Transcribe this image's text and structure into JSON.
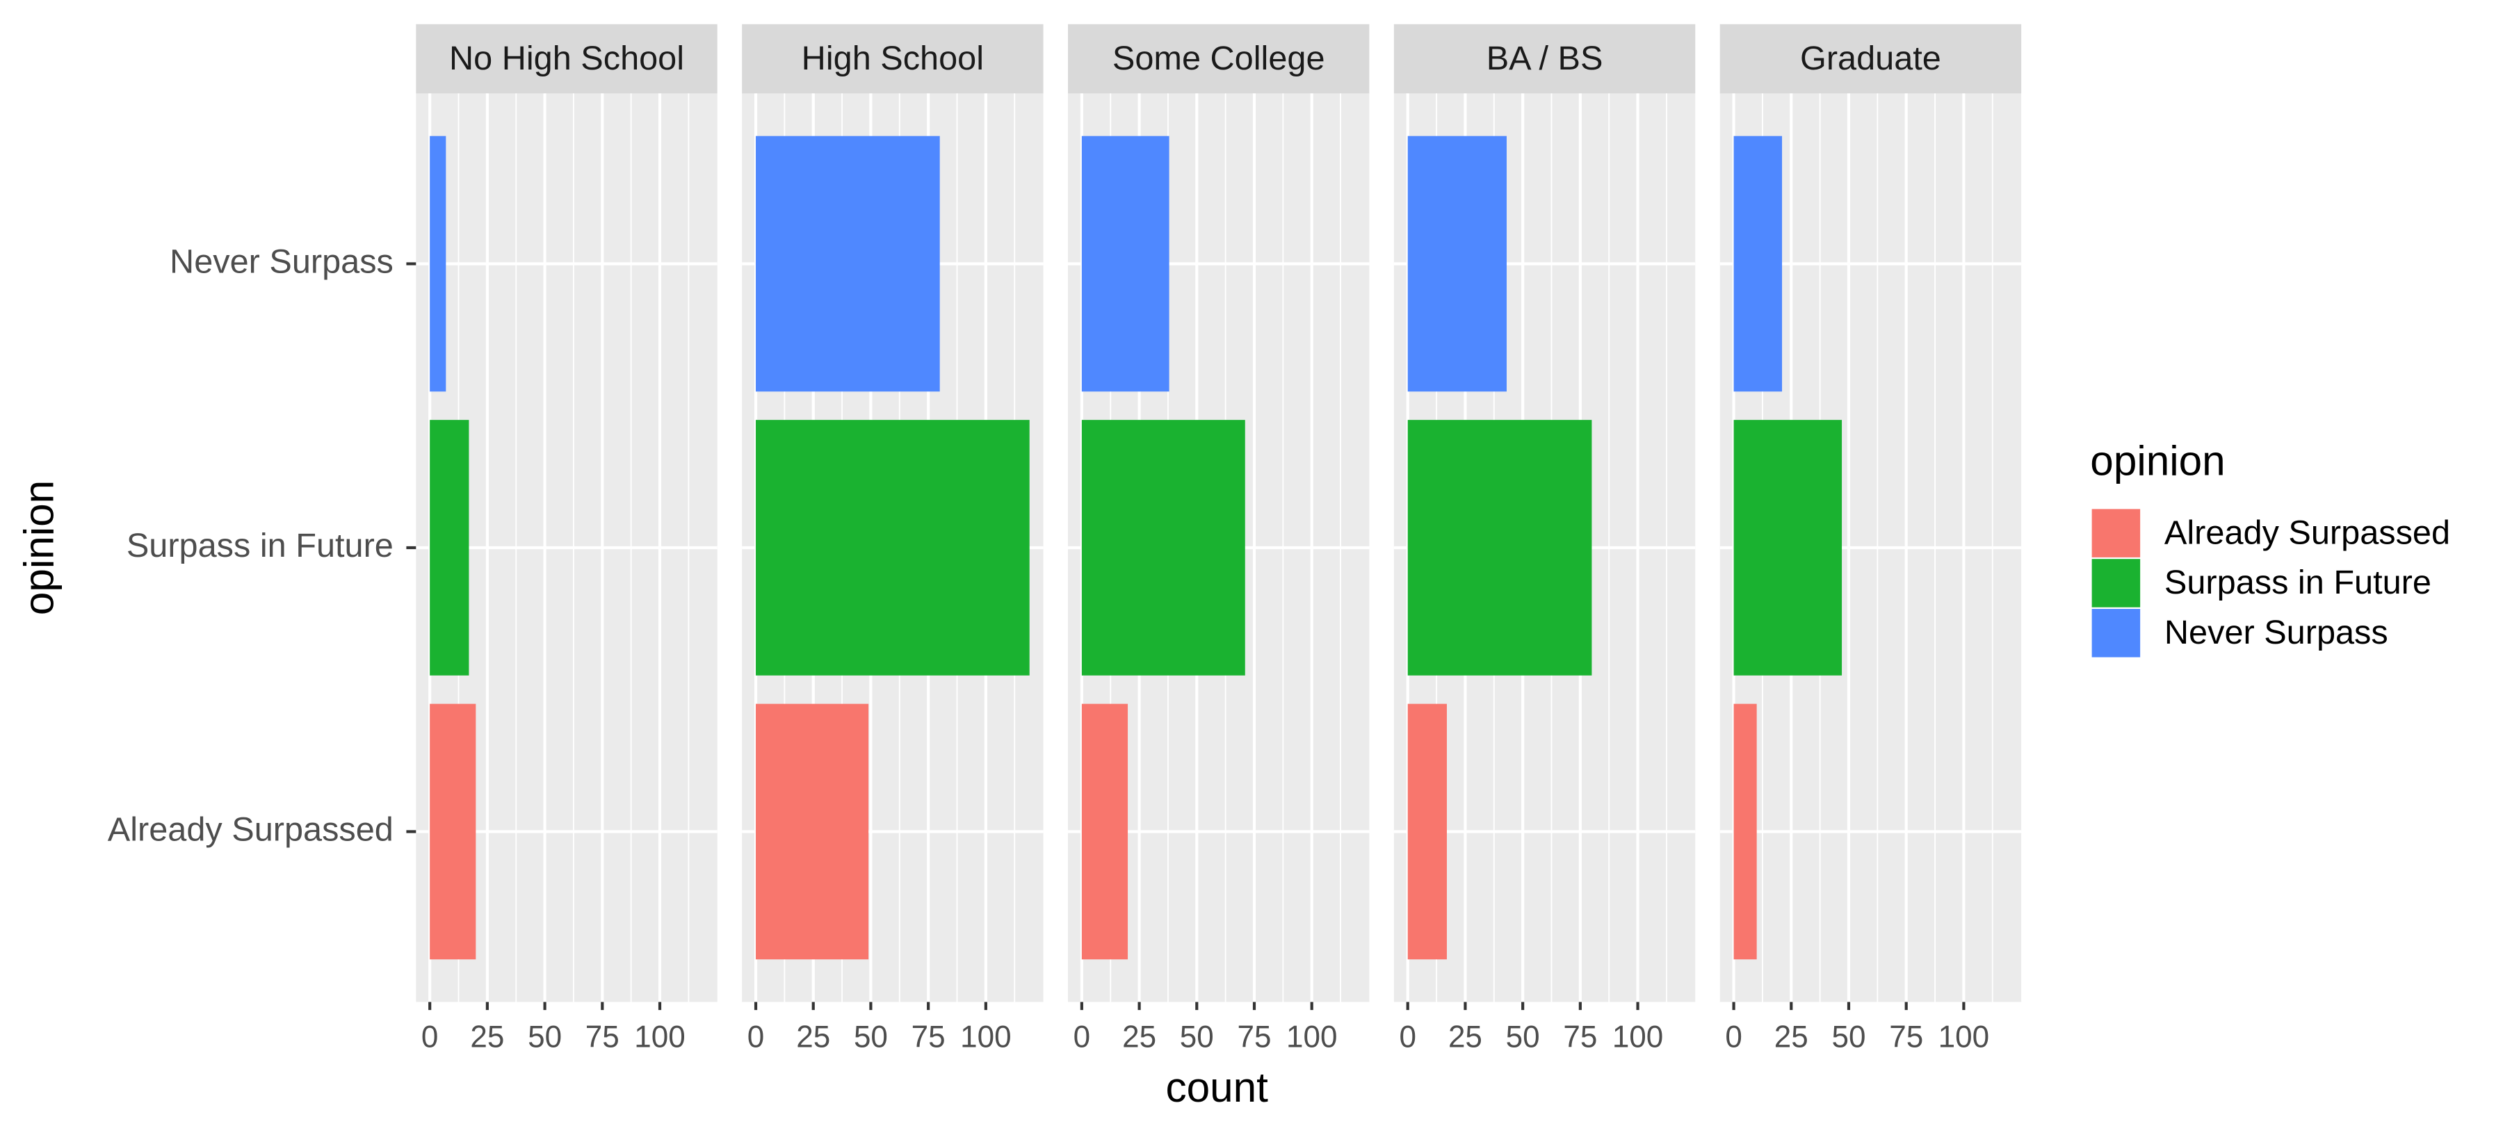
{
  "chart_data": {
    "type": "bar",
    "orientation": "horizontal",
    "x_label": "count",
    "y_label": "opinion",
    "legend_title": "opinion",
    "facets": [
      "No High School",
      "High School",
      "Some College",
      "BA / BS",
      "Graduate"
    ],
    "series": [
      {
        "name": "Already Surpassed",
        "color": "#f8766d",
        "values": [
          20,
          49,
          20,
          17,
          10
        ]
      },
      {
        "name": "Surpass in Future",
        "color": "#1ab230",
        "values": [
          17,
          119,
          71,
          80,
          47
        ]
      },
      {
        "name": "Never Surpass",
        "color": "#4f88ff",
        "values": [
          7,
          80,
          38,
          43,
          21
        ]
      }
    ],
    "xlim": [
      -6,
      125
    ],
    "xticks": [
      0,
      25,
      50,
      75,
      100
    ],
    "grid": true
  }
}
